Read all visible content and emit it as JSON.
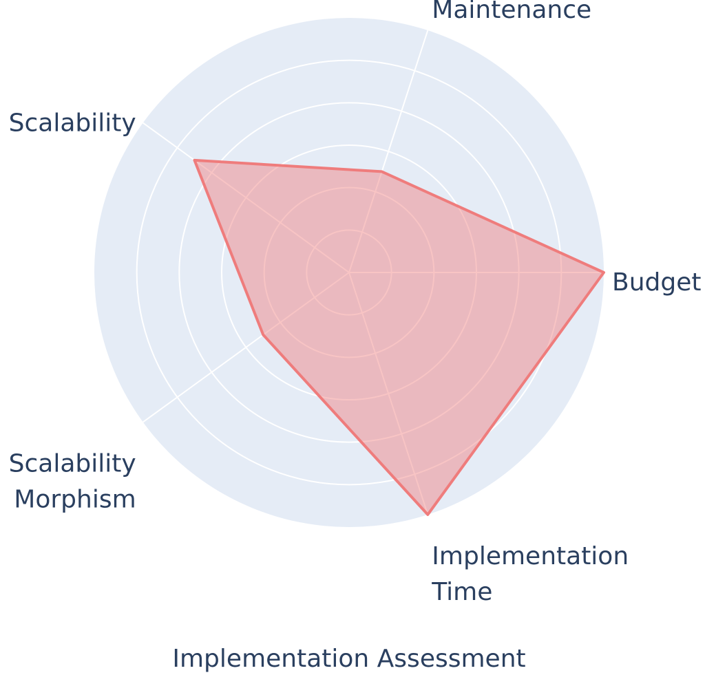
{
  "chart_data": {
    "type": "radar",
    "title": "Implementation Assessment",
    "axes": [
      "Budget",
      "Maintenance",
      "Scalability",
      "Scalability Morphism",
      "Implementation Time"
    ],
    "axis_label_lines": [
      [
        "Budget"
      ],
      [
        "Maintenance"
      ],
      [
        "Scalability"
      ],
      [
        "Scalability",
        "Morphism"
      ],
      [
        "Implementation",
        "Time"
      ]
    ],
    "values": [
      6,
      2.5,
      4.5,
      2.5,
      6
    ],
    "range": [
      0,
      6
    ],
    "gridlines": true,
    "legend": "none",
    "colors": {
      "background": "#e5ecf6",
      "grid": "#ffffff",
      "fill": "#ef7c7c",
      "fill_opacity": 0.45,
      "line": "#ef7c7c",
      "text": "#2a3f5f"
    }
  }
}
